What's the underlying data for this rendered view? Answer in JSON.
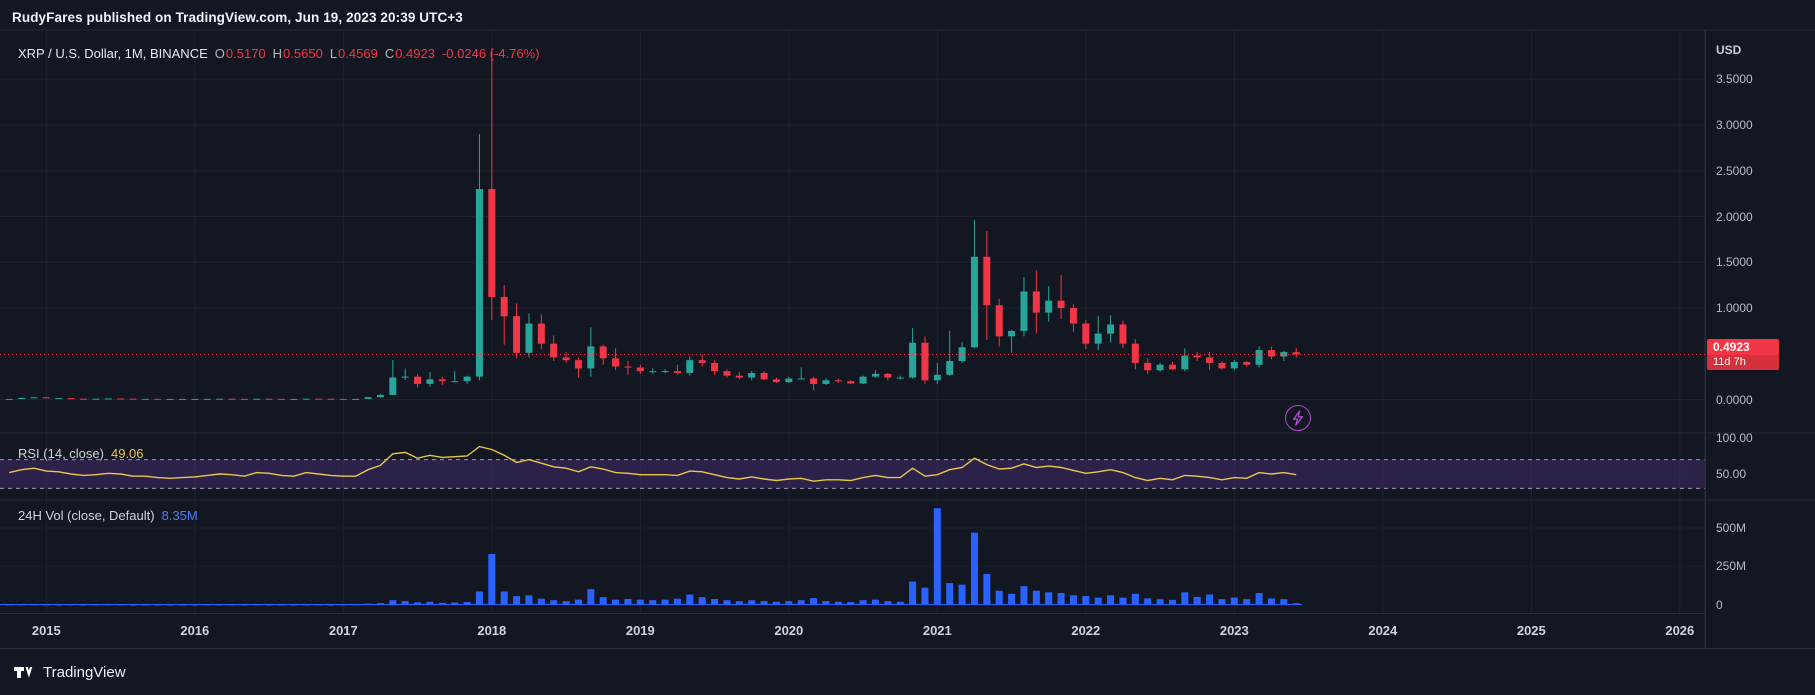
{
  "page": {
    "published_line": "RudyFares published on TradingView.com, Jun 19, 2023 20:39 UTC+3"
  },
  "legend": {
    "title": "XRP / U.S. Dollar, 1M, BINANCE",
    "items": [
      {
        "label": "O",
        "value": "0.5170"
      },
      {
        "label": "H",
        "value": "0.5650"
      },
      {
        "label": "L",
        "value": "0.4569"
      },
      {
        "label": "C",
        "value": "0.4923"
      }
    ],
    "change": "-0.0246 (-4.76%)"
  },
  "price_scale": {
    "unit": "USD",
    "last_price": "0.4923",
    "countdown": "11d 7h"
  },
  "rsi_legend": {
    "label": "RSI (14, close)",
    "value": "49.06"
  },
  "volume_legend": {
    "label": "24H Vol (close, Default)",
    "value": "8.35M"
  },
  "footer": {
    "brand": "TradingView"
  },
  "chart_data": {
    "type": "candlestick",
    "title": "XRP / U.S. Dollar, 1M, BINANCE",
    "exchange": "BINANCE",
    "interval": "1M",
    "x_axis": {
      "start": "2014-10",
      "step": "1 month",
      "year_labels": [
        2015,
        2016,
        2017,
        2018,
        2019,
        2020,
        2021,
        2022,
        2023,
        2024,
        2025,
        2026
      ]
    },
    "price_axis": {
      "unit": "USD",
      "ticks": [
        {
          "label": "3.5000",
          "value": 3.5
        },
        {
          "label": "3.0000",
          "value": 3.0
        },
        {
          "label": "2.5000",
          "value": 2.5
        },
        {
          "label": "2.0000",
          "value": 2.0
        },
        {
          "label": "1.5000",
          "value": 1.5
        },
        {
          "label": "1.0000",
          "value": 1.0
        },
        {
          "label": "0.0000",
          "value": 0.0
        }
      ],
      "last_price": 0.4923,
      "countdown": "11d 7h"
    },
    "last_ohlc": {
      "o": 0.517,
      "h": 0.565,
      "l": 0.4569,
      "c": 0.4923,
      "change": -0.0246,
      "change_pct": -4.76
    },
    "candles_ohlc": [
      [
        0.005,
        0.006,
        0.004,
        0.005
      ],
      [
        0.005,
        0.018,
        0.005,
        0.017
      ],
      [
        0.017,
        0.028,
        0.015,
        0.024
      ],
      [
        0.024,
        0.025,
        0.013,
        0.014
      ],
      [
        0.014,
        0.017,
        0.012,
        0.015
      ],
      [
        0.015,
        0.016,
        0.008,
        0.009
      ],
      [
        0.009,
        0.011,
        0.007,
        0.008
      ],
      [
        0.008,
        0.01,
        0.007,
        0.009
      ],
      [
        0.009,
        0.012,
        0.008,
        0.011
      ],
      [
        0.011,
        0.012,
        0.008,
        0.009
      ],
      [
        0.009,
        0.0095,
        0.006,
        0.007
      ],
      [
        0.007,
        0.008,
        0.006,
        0.007
      ],
      [
        0.007,
        0.008,
        0.004,
        0.005
      ],
      [
        0.005,
        0.006,
        0.004,
        0.005
      ],
      [
        0.005,
        0.0065,
        0.0045,
        0.006
      ],
      [
        0.006,
        0.0065,
        0.005,
        0.006
      ],
      [
        0.006,
        0.008,
        0.005,
        0.007
      ],
      [
        0.007,
        0.0085,
        0.006,
        0.008
      ],
      [
        0.008,
        0.0085,
        0.006,
        0.007
      ],
      [
        0.007,
        0.0075,
        0.005,
        0.006
      ],
      [
        0.006,
        0.0088,
        0.005,
        0.008
      ],
      [
        0.008,
        0.0085,
        0.006,
        0.007
      ],
      [
        0.007,
        0.0075,
        0.0055,
        0.006
      ],
      [
        0.006,
        0.0065,
        0.005,
        0.006
      ],
      [
        0.006,
        0.0095,
        0.0055,
        0.009
      ],
      [
        0.009,
        0.0095,
        0.0065,
        0.008
      ],
      [
        0.008,
        0.0085,
        0.006,
        0.0065
      ],
      [
        0.0065,
        0.007,
        0.0055,
        0.006
      ],
      [
        0.006,
        0.0075,
        0.0055,
        0.006
      ],
      [
        0.006,
        0.03,
        0.0055,
        0.025
      ],
      [
        0.025,
        0.06,
        0.02,
        0.05
      ],
      [
        0.05,
        0.43,
        0.045,
        0.24
      ],
      [
        0.24,
        0.34,
        0.21,
        0.25
      ],
      [
        0.25,
        0.28,
        0.13,
        0.17
      ],
      [
        0.17,
        0.3,
        0.14,
        0.22
      ],
      [
        0.22,
        0.25,
        0.16,
        0.2
      ],
      [
        0.2,
        0.31,
        0.19,
        0.2
      ],
      [
        0.2,
        0.26,
        0.17,
        0.25
      ],
      [
        0.25,
        2.9,
        0.21,
        2.3
      ],
      [
        2.3,
        3.84,
        0.87,
        1.12
      ],
      [
        1.12,
        1.25,
        0.6,
        0.91
      ],
      [
        0.91,
        1.05,
        0.45,
        0.51
      ],
      [
        0.51,
        0.94,
        0.46,
        0.83
      ],
      [
        0.83,
        0.93,
        0.55,
        0.61
      ],
      [
        0.61,
        0.7,
        0.42,
        0.46
      ],
      [
        0.46,
        0.52,
        0.4,
        0.43
      ],
      [
        0.43,
        0.46,
        0.24,
        0.34
      ],
      [
        0.34,
        0.79,
        0.25,
        0.58
      ],
      [
        0.58,
        0.6,
        0.38,
        0.45
      ],
      [
        0.45,
        0.56,
        0.32,
        0.36
      ],
      [
        0.36,
        0.42,
        0.27,
        0.35
      ],
      [
        0.35,
        0.38,
        0.28,
        0.31
      ],
      [
        0.31,
        0.34,
        0.28,
        0.31
      ],
      [
        0.31,
        0.33,
        0.29,
        0.31
      ],
      [
        0.31,
        0.38,
        0.27,
        0.29
      ],
      [
        0.29,
        0.47,
        0.26,
        0.43
      ],
      [
        0.43,
        0.49,
        0.36,
        0.4
      ],
      [
        0.4,
        0.43,
        0.27,
        0.31
      ],
      [
        0.31,
        0.33,
        0.24,
        0.26
      ],
      [
        0.26,
        0.3,
        0.22,
        0.24
      ],
      [
        0.24,
        0.31,
        0.21,
        0.29
      ],
      [
        0.29,
        0.31,
        0.21,
        0.22
      ],
      [
        0.22,
        0.24,
        0.18,
        0.19
      ],
      [
        0.19,
        0.25,
        0.18,
        0.23
      ],
      [
        0.23,
        0.35,
        0.22,
        0.23
      ],
      [
        0.23,
        0.25,
        0.1,
        0.17
      ],
      [
        0.17,
        0.23,
        0.16,
        0.21
      ],
      [
        0.21,
        0.23,
        0.18,
        0.2
      ],
      [
        0.2,
        0.21,
        0.17,
        0.175
      ],
      [
        0.175,
        0.26,
        0.17,
        0.25
      ],
      [
        0.25,
        0.32,
        0.24,
        0.28
      ],
      [
        0.28,
        0.29,
        0.21,
        0.24
      ],
      [
        0.24,
        0.26,
        0.22,
        0.24
      ],
      [
        0.24,
        0.78,
        0.23,
        0.62
      ],
      [
        0.62,
        0.69,
        0.17,
        0.21
      ],
      [
        0.21,
        0.4,
        0.17,
        0.27
      ],
      [
        0.27,
        0.75,
        0.26,
        0.42
      ],
      [
        0.42,
        0.63,
        0.4,
        0.57
      ],
      [
        0.57,
        1.96,
        0.56,
        1.56
      ],
      [
        1.56,
        1.84,
        0.65,
        1.03
      ],
      [
        1.03,
        1.1,
        0.58,
        0.69
      ],
      [
        0.69,
        0.76,
        0.51,
        0.75
      ],
      [
        0.75,
        1.34,
        0.69,
        1.18
      ],
      [
        1.18,
        1.41,
        0.72,
        0.95
      ],
      [
        0.95,
        1.24,
        0.85,
        1.08
      ],
      [
        1.08,
        1.36,
        0.88,
        1.0
      ],
      [
        1.0,
        1.04,
        0.74,
        0.83
      ],
      [
        0.83,
        0.87,
        0.55,
        0.61
      ],
      [
        0.61,
        0.91,
        0.54,
        0.72
      ],
      [
        0.72,
        0.92,
        0.62,
        0.82
      ],
      [
        0.82,
        0.86,
        0.56,
        0.61
      ],
      [
        0.61,
        0.66,
        0.33,
        0.4
      ],
      [
        0.4,
        0.45,
        0.28,
        0.32
      ],
      [
        0.32,
        0.4,
        0.3,
        0.38
      ],
      [
        0.38,
        0.41,
        0.32,
        0.33
      ],
      [
        0.33,
        0.56,
        0.31,
        0.48
      ],
      [
        0.48,
        0.52,
        0.42,
        0.46
      ],
      [
        0.46,
        0.52,
        0.32,
        0.4
      ],
      [
        0.4,
        0.42,
        0.33,
        0.34
      ],
      [
        0.34,
        0.43,
        0.32,
        0.41
      ],
      [
        0.41,
        0.42,
        0.36,
        0.38
      ],
      [
        0.38,
        0.58,
        0.35,
        0.54
      ],
      [
        0.54,
        0.58,
        0.44,
        0.47
      ],
      [
        0.47,
        0.53,
        0.42,
        0.52
      ],
      [
        0.517,
        0.565,
        0.4569,
        0.4923
      ]
    ],
    "indicators": {
      "rsi": {
        "label": "RSI (14, close)",
        "current": 49.06,
        "bands": [
          70,
          30
        ],
        "ticks": [
          {
            "label": "100.00",
            "value": 100
          },
          {
            "label": "50.00",
            "value": 50
          }
        ],
        "values": [
          52,
          56,
          58,
          54,
          53,
          50,
          48,
          49,
          51,
          50,
          47,
          47,
          45,
          44,
          45,
          46,
          48,
          50,
          49,
          47,
          52,
          51,
          48,
          47,
          52,
          50,
          48,
          47,
          47,
          56,
          62,
          78,
          80,
          72,
          76,
          73,
          74,
          75,
          88,
          84,
          76,
          66,
          70,
          65,
          60,
          58,
          53,
          60,
          57,
          52,
          51,
          49,
          49,
          49,
          48,
          54,
          53,
          49,
          45,
          43,
          46,
          43,
          41,
          43,
          44,
          40,
          42,
          42,
          41,
          45,
          48,
          45,
          45,
          58,
          47,
          49,
          56,
          59,
          72,
          63,
          57,
          58,
          64,
          59,
          61,
          59,
          55,
          51,
          53,
          56,
          52,
          45,
          41,
          44,
          42,
          48,
          47,
          45,
          42,
          45,
          44,
          52,
          50,
          52,
          49.06
        ]
      },
      "volume": {
        "label": "24H Vol (close, Default)",
        "current": 8.35,
        "current_label": "8.35M",
        "unit": "millions",
        "ticks": [
          {
            "label": "500M",
            "value": 500
          },
          {
            "label": "250M",
            "value": 250
          },
          {
            "label": "0",
            "value": 0
          }
        ],
        "values_millions": [
          0.5,
          1,
          1,
          0.8,
          0.7,
          0.9,
          0.6,
          0.5,
          0.8,
          0.6,
          0.5,
          0.4,
          0.5,
          0.4,
          0.5,
          0.5,
          0.6,
          0.7,
          0.6,
          0.5,
          0.9,
          0.6,
          0.5,
          0.4,
          0.8,
          0.6,
          0.5,
          1,
          1,
          6,
          9,
          28,
          22,
          14,
          18,
          11,
          13,
          16,
          85,
          330,
          85,
          55,
          60,
          38,
          28,
          22,
          32,
          100,
          48,
          32,
          36,
          32,
          28,
          32,
          38,
          65,
          48,
          36,
          28,
          22,
          28,
          22,
          18,
          22,
          28,
          42,
          22,
          18,
          16,
          28,
          32,
          22,
          18,
          150,
          110,
          630,
          140,
          130,
          470,
          200,
          90,
          70,
          120,
          90,
          80,
          75,
          60,
          55,
          45,
          60,
          45,
          70,
          40,
          35,
          30,
          80,
          50,
          65,
          35,
          45,
          35,
          75,
          40,
          35,
          8.35
        ]
      }
    },
    "colors": {
      "background": "#131722",
      "grid": "#1e222d",
      "up": "#26a69a",
      "down": "#f23645",
      "rsi_line": "#e7c74c",
      "rsi_band_fill": "rgba(118,62,192,0.25)",
      "volume": "#2962ff",
      "last_price_line": "#f23645",
      "badge": "#f23645"
    },
    "legend_position": "top-left",
    "grid": true
  }
}
